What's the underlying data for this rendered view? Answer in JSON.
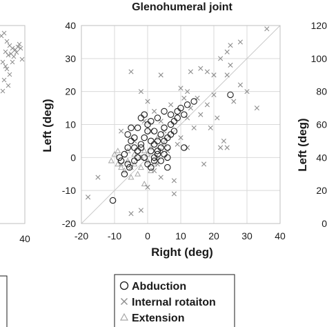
{
  "chart_data": [
    {
      "type": "scatter",
      "title": "Glenohumeral joint",
      "xlabel": "Right (deg)",
      "ylabel": "Left (deg)",
      "xlim": [
        -20,
        40
      ],
      "ylim": [
        -20,
        40
      ],
      "xticks": [
        "-20",
        "-10",
        "0",
        "10",
        "20",
        "30",
        "40"
      ],
      "yticks": [
        "-20",
        "-10",
        "0",
        "10",
        "20",
        "30",
        "40"
      ],
      "grid": true,
      "identity_line": true,
      "legend_position": "bottom",
      "series": [
        {
          "name": "Abduction",
          "marker": "circle",
          "points": [
            [
              -10.5,
              -13
            ],
            [
              -8,
              -1
            ],
            [
              -8.5,
              0
            ],
            [
              -7,
              1
            ],
            [
              -6,
              -2
            ],
            [
              -5.5,
              -3
            ],
            [
              -6,
              3
            ],
            [
              -5,
              5
            ],
            [
              -4,
              6
            ],
            [
              -4,
              -1
            ],
            [
              -3,
              0
            ],
            [
              -3,
              2
            ],
            [
              -2,
              3
            ],
            [
              -2,
              4
            ],
            [
              -1,
              6
            ],
            [
              -3,
              9
            ],
            [
              -2,
              12
            ],
            [
              -1,
              13
            ],
            [
              0,
              10
            ],
            [
              0,
              8
            ],
            [
              1,
              11
            ],
            [
              1,
              5
            ],
            [
              1,
              2
            ],
            [
              2,
              4
            ],
            [
              2,
              0
            ],
            [
              3,
              5
            ],
            [
              3,
              2
            ],
            [
              4,
              7
            ],
            [
              4,
              3
            ],
            [
              5,
              9
            ],
            [
              5,
              5
            ],
            [
              5,
              1
            ],
            [
              6,
              6
            ],
            [
              6,
              3
            ],
            [
              7,
              10
            ],
            [
              7,
              7
            ],
            [
              8,
              11
            ],
            [
              8,
              8
            ],
            [
              9,
              14
            ],
            [
              9,
              12
            ],
            [
              10,
              15
            ],
            [
              11,
              13
            ],
            [
              11,
              3
            ],
            [
              12,
              16
            ],
            [
              14,
              17
            ],
            [
              2,
              -1
            ],
            [
              3,
              1
            ],
            [
              -1,
              0
            ],
            [
              0,
              -2
            ],
            [
              4,
              -1
            ],
            [
              6,
              0
            ],
            [
              -4,
              3
            ],
            [
              -6,
              7
            ],
            [
              -5,
              9
            ],
            [
              2,
              8
            ],
            [
              3,
              12
            ],
            [
              5,
              14
            ],
            [
              7,
              13
            ],
            [
              25,
              19
            ],
            [
              6,
              -3
            ],
            [
              -7,
              -5
            ],
            [
              1,
              -3
            ]
          ]
        },
        {
          "name": "Internal rotaiton",
          "marker": "x",
          "points": [
            [
              36,
              39
            ],
            [
              25,
              28
            ],
            [
              22,
              30
            ],
            [
              24,
              32
            ],
            [
              18,
              26
            ],
            [
              20,
              25
            ],
            [
              16,
              27
            ],
            [
              13,
              26
            ],
            [
              4,
              25
            ],
            [
              10,
              21
            ],
            [
              28,
              22
            ],
            [
              30,
              20
            ],
            [
              33,
              15
            ],
            [
              26,
              17
            ],
            [
              12,
              20
            ],
            [
              -8,
              8
            ],
            [
              -18,
              -12
            ],
            [
              -15,
              -6
            ],
            [
              -5,
              -17
            ],
            [
              -2,
              -16
            ],
            [
              4,
              -6
            ],
            [
              8,
              -11
            ],
            [
              17,
              -2
            ],
            [
              22,
              3
            ],
            [
              23,
              5
            ],
            [
              24,
              3
            ],
            [
              19,
              9
            ],
            [
              16,
              13
            ],
            [
              12,
              12
            ],
            [
              13,
              15
            ],
            [
              -5,
              26
            ],
            [
              -2,
              20
            ],
            [
              0,
              17
            ],
            [
              2,
              14
            ],
            [
              -3,
              1
            ],
            [
              2,
              -4
            ],
            [
              -5,
              -3
            ],
            [
              6,
              2
            ],
            [
              9,
              4
            ],
            [
              1,
              8
            ],
            [
              4,
              11
            ],
            [
              7,
              16
            ],
            [
              14,
              9
            ],
            [
              18,
              16
            ],
            [
              11,
              18
            ],
            [
              28,
              35
            ],
            [
              25,
              34
            ],
            [
              24,
              25
            ],
            [
              20,
              19
            ],
            [
              15,
              18
            ],
            [
              -1,
              11
            ],
            [
              -4,
              5
            ],
            [
              8,
              -7
            ],
            [
              0,
              -9
            ],
            [
              3,
              -2
            ],
            [
              -8,
              -2
            ],
            [
              10,
              6
            ],
            [
              5,
              8
            ],
            [
              12,
              3
            ],
            [
              21,
              12
            ]
          ]
        },
        {
          "name": "Extension",
          "marker": "triangle",
          "points": [
            [
              -11,
              -1
            ],
            [
              -10,
              1
            ],
            [
              -9,
              -2
            ],
            [
              -8,
              -3
            ],
            [
              -7,
              -4
            ],
            [
              -6,
              -1
            ],
            [
              -5,
              -6
            ],
            [
              -4,
              -2
            ],
            [
              -3,
              -5
            ],
            [
              -2,
              -3
            ],
            [
              -1,
              -8
            ],
            [
              0,
              -1
            ],
            [
              1,
              -4
            ],
            [
              2,
              -2
            ],
            [
              3,
              0
            ],
            [
              -1,
              2
            ],
            [
              0,
              1
            ],
            [
              -2,
              0
            ],
            [
              -4,
              1
            ],
            [
              -6,
              2
            ],
            [
              1,
              3
            ],
            [
              4,
              2
            ],
            [
              5,
              4
            ],
            [
              3,
              6
            ],
            [
              -9,
              2
            ]
          ]
        }
      ]
    }
  ],
  "left_partial_chart": {
    "x_tick": "40",
    "markers": "Internal rotaiton"
  },
  "right_partial_chart": {
    "ylabel": "Left (deg)",
    "yticks": [
      "0",
      "20",
      "40",
      "60",
      "80",
      "100",
      "120"
    ]
  },
  "legend": {
    "items": [
      {
        "label": "Abduction",
        "marker": "circle"
      },
      {
        "label": "Internal rotaiton",
        "marker": "x"
      },
      {
        "label": "Extension",
        "marker": "triangle"
      }
    ]
  },
  "colors": {
    "axis": "#bfbfbf",
    "grid": "#d9d9d9",
    "identity": "#c8c8c8",
    "circle": "#1a1a1a",
    "x": "#8c8c8c",
    "triangle": "#a6a6a6",
    "text": "#1a1a1a"
  }
}
